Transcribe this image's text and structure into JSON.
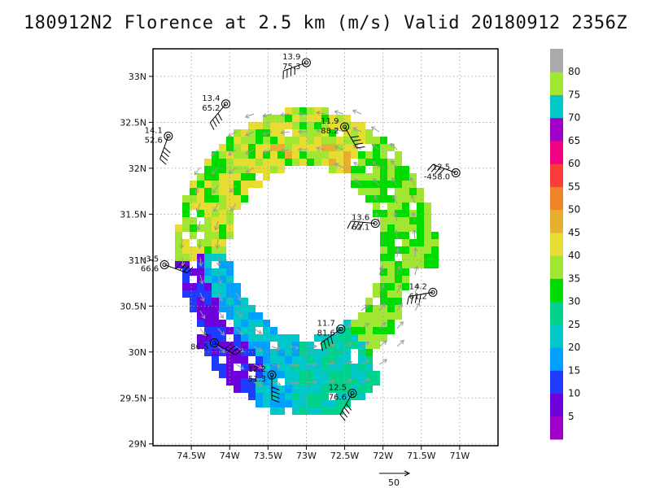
{
  "title": "180912N2 Florence at 2.5 km (m/s) Valid 20180912 2356Z",
  "lat_labels": [
    "33N",
    "32.5N",
    "32N",
    "31.5N",
    "31N",
    "30.5N",
    "30N",
    "29.5N",
    "29N"
  ],
  "lon_labels": [
    "74.5W",
    "74W",
    "73.5W",
    "73W",
    "72.5W",
    "72W",
    "71.5W",
    "71W"
  ],
  "colorbar": {
    "labels": [
      "5",
      "10",
      "15",
      "20",
      "25",
      "30",
      "35",
      "40",
      "45",
      "50",
      "55",
      "60",
      "65",
      "70",
      "75",
      "80"
    ],
    "colors": [
      "#a000c8",
      "#6e00dc",
      "#1e3cff",
      "#00a0ff",
      "#00c8c8",
      "#00d28c",
      "#00dc00",
      "#a0e632",
      "#e6dc32",
      "#e6af2d",
      "#f08228",
      "#fa3c3c",
      "#f00082",
      "#a000c8",
      "#00c8c8",
      "#a0e632",
      "#aaaaaa"
    ]
  },
  "reference_vector": {
    "label": "50"
  },
  "stations": [
    {
      "lon": -73.0,
      "lat": 33.15,
      "top": "13.9",
      "bottom": "75.3"
    },
    {
      "lon": -74.05,
      "lat": 32.7,
      "top": "13.4",
      "bottom": "65.2"
    },
    {
      "lon": -74.8,
      "lat": 32.35,
      "top": "14.1",
      "bottom": "52.6"
    },
    {
      "lon": -72.5,
      "lat": 32.45,
      "top": "11.9",
      "bottom": "88.2"
    },
    {
      "lon": -71.05,
      "lat": 31.95,
      "top": "12.5",
      "bottom": "-458.0"
    },
    {
      "lon": -72.1,
      "lat": 31.4,
      "top": "13.6",
      "bottom": "62.1"
    },
    {
      "lon": -74.85,
      "lat": 30.95,
      "top": "-3.5",
      "bottom": "66.6"
    },
    {
      "lon": -71.35,
      "lat": 30.65,
      "top": "14.2",
      "bottom": "61.2"
    },
    {
      "lon": -72.55,
      "lat": 30.25,
      "top": "11.7",
      "bottom": "81.6"
    },
    {
      "lon": -74.2,
      "lat": 30.1,
      "top": "?",
      "bottom": "86.5"
    },
    {
      "lon": -73.45,
      "lat": 29.75,
      "top": "12.2",
      "bottom": "51.3"
    },
    {
      "lon": -72.4,
      "lat": 29.55,
      "top": "12.5",
      "bottom": "76.6"
    }
  ]
}
